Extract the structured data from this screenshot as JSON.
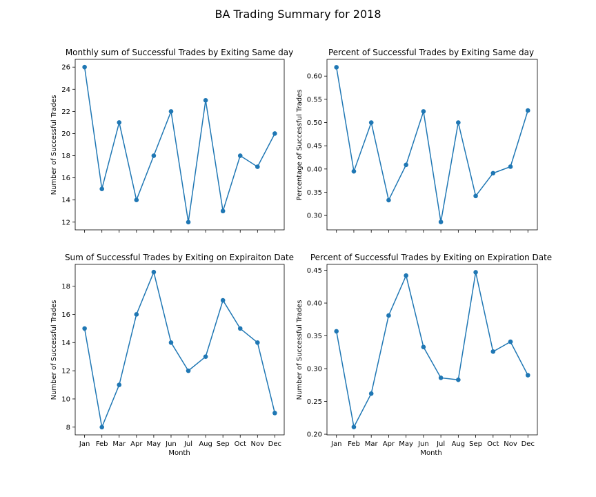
{
  "figure": {
    "title": "BA Trading Summary for 2018",
    "colors": {
      "series": "#1f77b4",
      "axes": "#000000",
      "background": "#ffffff"
    }
  },
  "chart_data": [
    {
      "type": "line",
      "title": "Monthly sum of Successful Trades by Exiting Same day",
      "xlabel": "",
      "ylabel": "Number of Successful Trades",
      "categories": [
        "Jan",
        "Feb",
        "Mar",
        "Apr",
        "May",
        "Jun",
        "Jul",
        "Aug",
        "Sep",
        "Oct",
        "Nov",
        "Dec"
      ],
      "show_xtick_labels": false,
      "values": [
        26,
        15,
        21,
        14,
        18,
        22,
        12,
        23,
        13,
        18,
        17,
        20
      ],
      "ylim": [
        11.3,
        26.7
      ],
      "yticks": [
        12,
        14,
        16,
        18,
        20,
        22,
        24,
        26
      ],
      "ytick_decimals": 0,
      "grid": false,
      "markers": true
    },
    {
      "type": "line",
      "title": "Percent of Successful Trades by Exiting Same day",
      "xlabel": "",
      "ylabel": "Percentage of Successful Trades",
      "categories": [
        "Jan",
        "Feb",
        "Mar",
        "Apr",
        "May",
        "Jun",
        "Jul",
        "Aug",
        "Sep",
        "Oct",
        "Nov",
        "Dec"
      ],
      "show_xtick_labels": false,
      "values": [
        0.619,
        0.395,
        0.5,
        0.333,
        0.409,
        0.524,
        0.286,
        0.5,
        0.342,
        0.391,
        0.405,
        0.526
      ],
      "ylim": [
        0.269,
        0.636
      ],
      "yticks": [
        0.3,
        0.35,
        0.4,
        0.45,
        0.5,
        0.55,
        0.6
      ],
      "ytick_decimals": 2,
      "grid": false,
      "markers": true
    },
    {
      "type": "line",
      "title": "Sum of Successful Trades by Exiting on Expiraiton Date",
      "xlabel": "Month",
      "ylabel": "Number of Successful Trades",
      "categories": [
        "Jan",
        "Feb",
        "Mar",
        "Apr",
        "May",
        "Jun",
        "Jul",
        "Aug",
        "Sep",
        "Oct",
        "Nov",
        "Dec"
      ],
      "show_xtick_labels": true,
      "values": [
        15,
        8,
        11,
        16,
        19,
        14,
        12,
        13,
        17,
        15,
        14,
        9
      ],
      "ylim": [
        7.45,
        19.55
      ],
      "yticks": [
        8,
        10,
        12,
        14,
        16,
        18
      ],
      "ytick_decimals": 0,
      "grid": false,
      "markers": true
    },
    {
      "type": "line",
      "title": "Percent of Successful Trades by Exiting on Expiration Date",
      "xlabel": "Month",
      "ylabel": "Number of Successful Trades",
      "categories": [
        "Jan",
        "Feb",
        "Mar",
        "Apr",
        "May",
        "Jun",
        "Jul",
        "Aug",
        "Sep",
        "Oct",
        "Nov",
        "Dec"
      ],
      "show_xtick_labels": true,
      "values": [
        0.357,
        0.211,
        0.262,
        0.381,
        0.442,
        0.333,
        0.286,
        0.283,
        0.447,
        0.326,
        0.341,
        0.29
      ],
      "ylim": [
        0.199,
        0.459
      ],
      "yticks": [
        0.2,
        0.25,
        0.3,
        0.35,
        0.4,
        0.45
      ],
      "ytick_decimals": 2,
      "grid": false,
      "markers": true
    }
  ]
}
